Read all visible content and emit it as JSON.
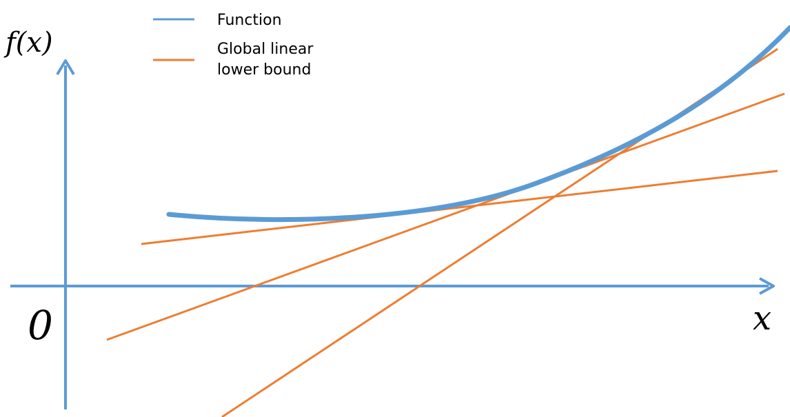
{
  "legend": {
    "function_label": "Function",
    "bound_label_line1": "Global linear",
    "bound_label_line2": "lower bound"
  },
  "axes": {
    "y_label": "f(x)",
    "x_label": "x",
    "origin_label": "0"
  },
  "colors": {
    "function": "#5b9bd5",
    "bound": "#ed7d31",
    "axis": "#5b9bd5",
    "text": "#000000"
  }
}
